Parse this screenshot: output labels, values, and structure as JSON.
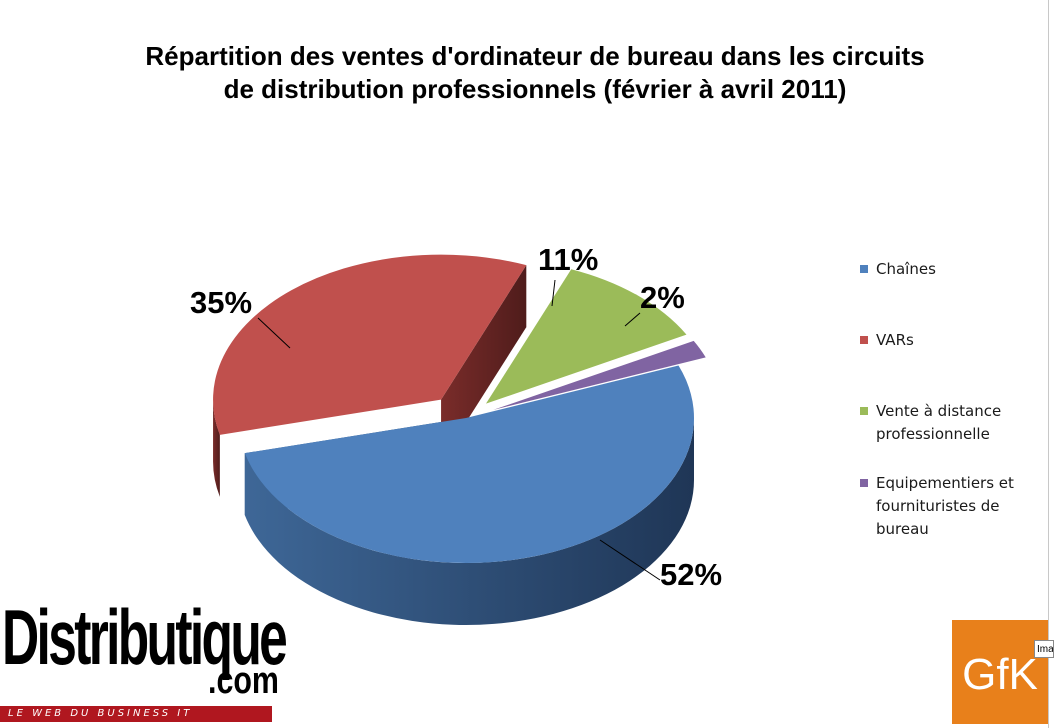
{
  "chart_data": {
    "type": "pie",
    "title_lines": [
      "Répartition des ventes d'ordinateur de bureau dans les circuits",
      "de distribution professionnels (février à avril 2011)"
    ],
    "categories": [
      "Chaînes",
      "VARs",
      "Vente à distance professionnelle",
      "Equipementiers et fournituristes de bureau"
    ],
    "values": [
      52,
      35,
      11,
      2
    ],
    "labels": [
      "52%",
      "35%",
      "11%",
      "2%"
    ],
    "colors": [
      "#4f81bd",
      "#c0504d",
      "#9bbb59",
      "#8064a2"
    ],
    "style": "3d-exploded",
    "legend_position": "right"
  },
  "logos": {
    "brand_name": "Distributique",
    "brand_domain": ".com",
    "brand_tagline": "LE WEB DU BUSINESS IT",
    "partner": "GfK",
    "tab_fragment": "Ima"
  }
}
